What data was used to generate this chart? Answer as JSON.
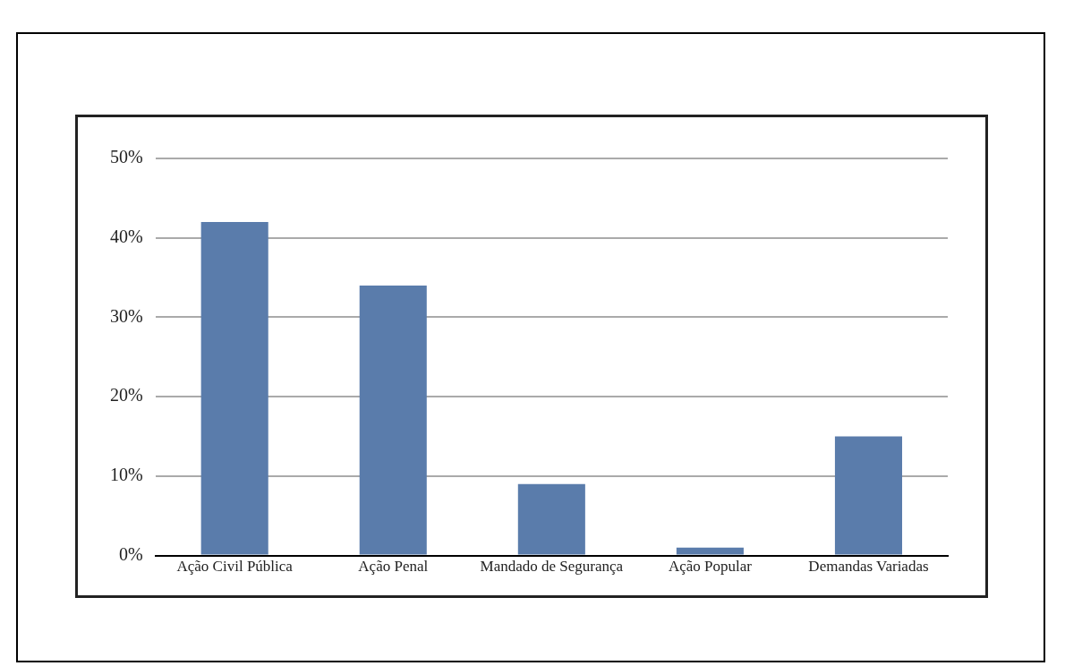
{
  "chart_data": {
    "type": "bar",
    "categories": [
      "Ação Civil Pública",
      "Ação Penal",
      "Mandado de Segurança",
      "Ação Popular",
      "Demandas Variadas"
    ],
    "values": [
      42,
      34,
      9,
      1,
      15
    ],
    "color": "#5a7cab",
    "ylim": [
      0,
      50
    ],
    "yticks": [
      {
        "value": 0,
        "label": "0%"
      },
      {
        "value": 10,
        "label": "10%"
      },
      {
        "value": 20,
        "label": "20%"
      },
      {
        "value": 30,
        "label": "30%"
      },
      {
        "value": 40,
        "label": "40%"
      },
      {
        "value": 50,
        "label": "50%"
      }
    ],
    "grid": "y",
    "legend": false
  }
}
